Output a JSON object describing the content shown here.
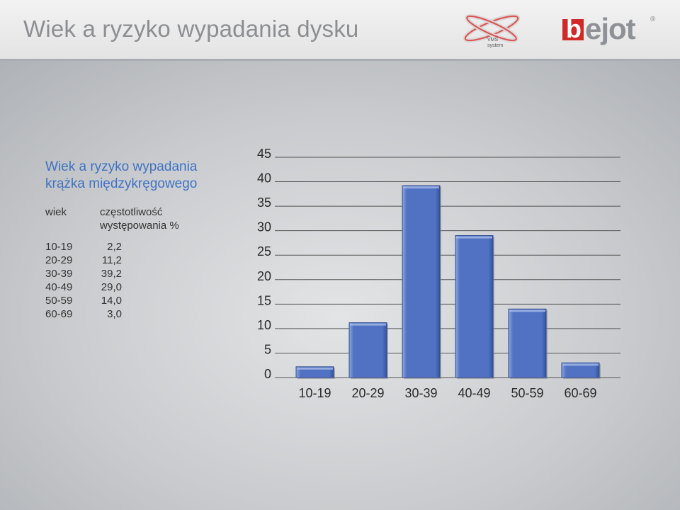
{
  "header": {
    "title": "Wiek a ryzyko wypadania dysku",
    "vms_logo_text_1": "VMS",
    "vms_logo_text_2": "system",
    "brand_logo_text": "bejot",
    "brand_logo_mark": "®",
    "brand_color": "#cf2a27"
  },
  "table": {
    "title_line1": "Wiek a ryzyko wypadania",
    "title_line2": "krążka międzykręgowego",
    "col_age": "wiek",
    "col_freq_line1": "częstotliwość",
    "col_freq_line2": "występowania %",
    "rows": [
      {
        "age": "10-19",
        "value": "2,2"
      },
      {
        "age": "20-29",
        "value": "11,2"
      },
      {
        "age": "30-39",
        "value": "39,2"
      },
      {
        "age": "40-49",
        "value": "29,0"
      },
      {
        "age": "50-59",
        "value": "14,0"
      },
      {
        "age": "60-69",
        "value": "3,0"
      }
    ]
  },
  "chart_data": {
    "type": "bar",
    "categories": [
      "10-19",
      "20-29",
      "30-39",
      "40-49",
      "50-59",
      "60-69"
    ],
    "values": [
      2.2,
      11.2,
      39.2,
      29.0,
      14.0,
      3.0
    ],
    "title": "",
    "xlabel": "",
    "ylabel": "",
    "ylim": [
      0,
      45
    ],
    "yticks": [
      0,
      5,
      10,
      15,
      20,
      25,
      30,
      35,
      40,
      45
    ],
    "grid": true,
    "bar_color": "#5172c2"
  }
}
